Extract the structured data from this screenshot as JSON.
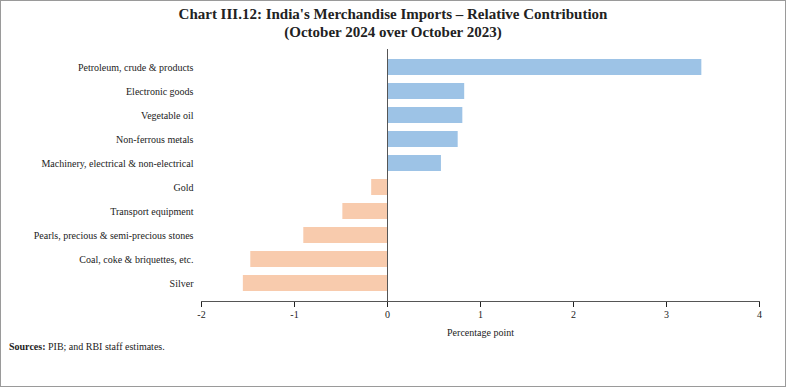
{
  "chart_data": {
    "type": "bar",
    "orientation": "horizontal",
    "title": "Chart III.12: India's Merchandise Imports – Relative Contribution",
    "subtitle": "(October 2024 over October 2023)",
    "categories": [
      "Petroleum, crude & products",
      "Electronic goods",
      "Vegetable oil",
      "Non-ferrous metals",
      "Machinery, electrical & non-electrical",
      "Gold",
      "Transport equipment",
      "Pearls, precious & semi-precious stones",
      "Coal, coke & briquettes, etc.",
      "Silver"
    ],
    "values": [
      3.38,
      0.83,
      0.81,
      0.76,
      0.58,
      -0.17,
      -0.48,
      -0.9,
      -1.47,
      -1.55
    ],
    "colors": [
      "#9dc3e6",
      "#9dc3e6",
      "#9dc3e6",
      "#9dc3e6",
      "#9dc3e6",
      "#f8cbad",
      "#f8cbad",
      "#f8cbad",
      "#f8cbad",
      "#f8cbad"
    ],
    "xlim": [
      -2,
      4
    ],
    "xticks": [
      -2,
      -1,
      0,
      1,
      2,
      3,
      4
    ],
    "xlabel": "Percentage point",
    "grid": false,
    "source": "Sources: PIB; and RBI staff estimates."
  }
}
